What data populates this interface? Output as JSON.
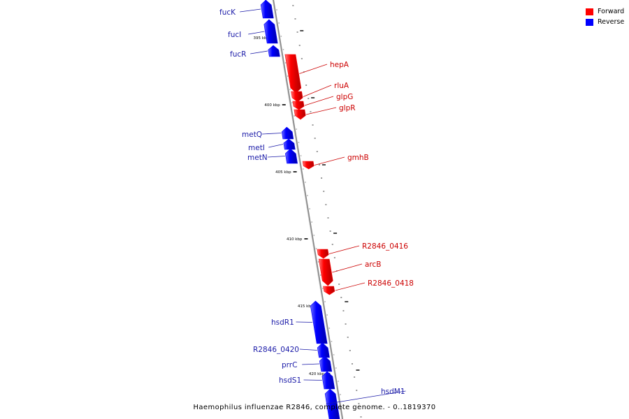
{
  "caption": "Haemophilus influenzae R2846, complete genome. - 0..1819370",
  "legend": [
    {
      "label": "Forward",
      "color": "#ff0000"
    },
    {
      "label": "Reverse",
      "color": "#0000ff"
    }
  ],
  "colors": {
    "forward": "#ff0000",
    "reverse": "#0000ff",
    "forward_label": "#cc0000",
    "reverse_label": "#1a1aa8",
    "backbone": "#888888"
  },
  "scale": {
    "unit": "kbp",
    "major_ticks": [
      "395 kbp",
      "400 kbp",
      "405 kbp",
      "410 kbp",
      "415 kbp",
      "420 kbp"
    ]
  },
  "genes": [
    {
      "name": "fucK",
      "strand": "reverse"
    },
    {
      "name": "fucI",
      "strand": "reverse"
    },
    {
      "name": "fucR",
      "strand": "reverse"
    },
    {
      "name": "hepA",
      "strand": "forward"
    },
    {
      "name": "rluA",
      "strand": "forward"
    },
    {
      "name": "glpG",
      "strand": "forward"
    },
    {
      "name": "glpR",
      "strand": "forward"
    },
    {
      "name": "metQ",
      "strand": "reverse"
    },
    {
      "name": "metI",
      "strand": "reverse"
    },
    {
      "name": "metN",
      "strand": "reverse"
    },
    {
      "name": "gmhB",
      "strand": "forward"
    },
    {
      "name": "R2846_0416",
      "strand": "forward"
    },
    {
      "name": "arcB",
      "strand": "forward"
    },
    {
      "name": "R2846_0418",
      "strand": "forward"
    },
    {
      "name": "hsdR1",
      "strand": "reverse"
    },
    {
      "name": "R2846_0420",
      "strand": "reverse"
    },
    {
      "name": "prrC",
      "strand": "reverse"
    },
    {
      "name": "hsdS1",
      "strand": "reverse"
    },
    {
      "name": "hsdM1",
      "strand": "reverse"
    }
  ]
}
